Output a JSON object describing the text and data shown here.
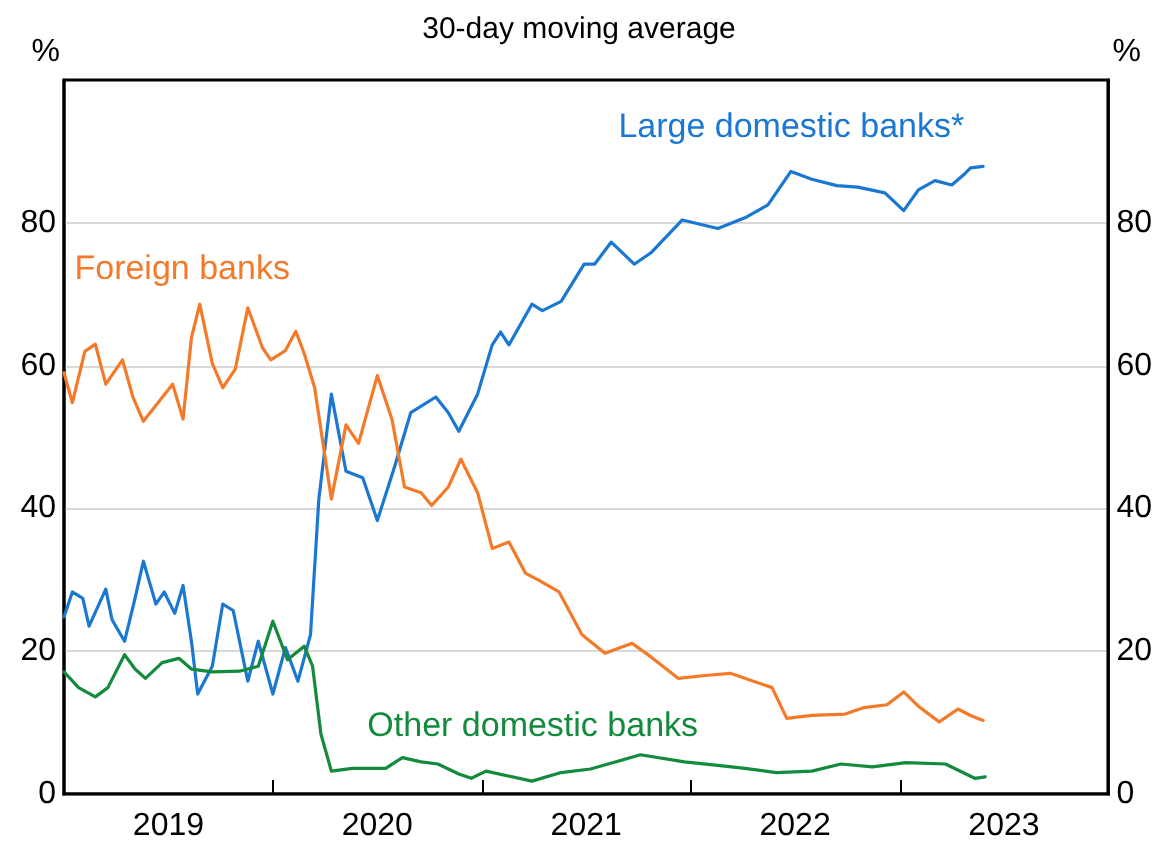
{
  "chart_data": {
    "type": "line",
    "title": "30-day moving average",
    "ylabel": "%",
    "y2label": "%",
    "xlim": [
      2019,
      2024
    ],
    "xticks": [
      {
        "value": 2019.5,
        "label": "2019"
      },
      {
        "value": 2020,
        "label": null
      },
      {
        "value": 2020.5,
        "label": "2020"
      },
      {
        "value": 2021,
        "label": null
      },
      {
        "value": 2021.5,
        "label": "2021"
      },
      {
        "value": 2022,
        "label": null
      },
      {
        "value": 2022.5,
        "label": "2022"
      },
      {
        "value": 2023,
        "label": null
      },
      {
        "value": 2023.5,
        "label": "2023"
      }
    ],
    "ylim": [
      0,
      100
    ],
    "yticks": [
      0,
      20,
      40,
      60,
      80
    ],
    "y2lim": [
      0,
      100
    ],
    "y2ticks": [
      0,
      20,
      40,
      60,
      80
    ],
    "grid": "y",
    "legend": false,
    "marker": "none",
    "line_style": "solid",
    "series": [
      {
        "name": "Large domestic banks*",
        "color": "#1a78d2",
        "x": [
          2019.0,
          2019.04,
          2019.09,
          2019.12,
          2019.2,
          2019.23,
          2019.29,
          2019.34,
          2019.38,
          2019.44,
          2019.48,
          2019.53,
          2019.57,
          2019.61,
          2019.64,
          2019.71,
          2019.76,
          2019.81,
          2019.88,
          2019.93,
          2020.0,
          2020.06,
          2020.12,
          2020.18,
          2020.22,
          2020.28,
          2020.35,
          2020.43,
          2020.5,
          2020.58,
          2020.66,
          2020.78,
          2020.84,
          2020.89,
          2020.98,
          2021.05,
          2021.09,
          2021.13,
          2021.24,
          2021.29,
          2021.38,
          2021.49,
          2021.54,
          2021.62,
          2021.73,
          2021.81,
          2021.96,
          2022.13,
          2022.26,
          2022.37,
          2022.48,
          2022.58,
          2022.7,
          2022.8,
          2022.93,
          2023.02,
          2023.09,
          2023.17,
          2023.25,
          2023.31,
          2023.34,
          2023.4
        ],
        "values": [
          24.8,
          28.3,
          27.4,
          23.5,
          28.7,
          24.4,
          21.4,
          27.4,
          32.6,
          26.6,
          28.3,
          25.3,
          29.2,
          21.4,
          14,
          17.9,
          26.6,
          25.7,
          15.8,
          21.4,
          14,
          20.5,
          15.8,
          22.3,
          41.3,
          56,
          45.2,
          44.3,
          38.3,
          45.6,
          53.4,
          55.6,
          53.4,
          50.8,
          56,
          62.9,
          64.7,
          62.9,
          68.6,
          67.7,
          69,
          74.2,
          74.2,
          77.3,
          74.2,
          75.8,
          80.4,
          79.2,
          80.7,
          82.5,
          87.2,
          86.1,
          85.2,
          85,
          84.2,
          81.7,
          84.6,
          85.9,
          85.3,
          86.8,
          87.7,
          87.9
        ]
      },
      {
        "name": "Foreign banks",
        "color": "#f47a2a",
        "x": [
          2019.0,
          2019.04,
          2019.1,
          2019.15,
          2019.2,
          2019.28,
          2019.33,
          2019.38,
          2019.45,
          2019.52,
          2019.57,
          2019.61,
          2019.65,
          2019.71,
          2019.76,
          2019.82,
          2019.88,
          2019.95,
          2019.99,
          2020.06,
          2020.11,
          2020.15,
          2020.2,
          2020.24,
          2020.28,
          2020.35,
          2020.41,
          2020.5,
          2020.57,
          2020.63,
          2020.71,
          2020.76,
          2020.84,
          2020.9,
          2020.98,
          2021.05,
          2021.13,
          2021.21,
          2021.27,
          2021.37,
          2021.48,
          2021.59,
          2021.72,
          2021.81,
          2021.94,
          2022.07,
          2022.19,
          2022.35,
          2022.39,
          2022.46,
          2022.58,
          2022.74,
          2022.83,
          2022.94,
          2023.02,
          2023.09,
          2023.19,
          2023.28,
          2023.34,
          2023.4
        ],
        "values": [
          59,
          54.8,
          62,
          63,
          57.4,
          60.8,
          55.6,
          52.2,
          54.8,
          57.4,
          52.5,
          63.9,
          68.6,
          60.3,
          56.9,
          59.5,
          68.1,
          62.5,
          60.8,
          62.1,
          64.8,
          61.7,
          56.9,
          49.1,
          41.3,
          51.7,
          49.1,
          58.6,
          52.5,
          43,
          42.2,
          40.4,
          43,
          46.9,
          42.2,
          34.4,
          35.3,
          30.9,
          30,
          28.3,
          22.3,
          19.7,
          21.1,
          19.2,
          16.2,
          16.6,
          16.9,
          15.3,
          14.9,
          10.6,
          11,
          11.2,
          12.1,
          12.5,
          14.3,
          12.3,
          10.1,
          11.9,
          11,
          10.3
        ]
      },
      {
        "name": "Other domestic banks",
        "color": "#138a3c",
        "x": [
          2019.0,
          2019.07,
          2019.15,
          2019.21,
          2019.29,
          2019.34,
          2019.39,
          2019.47,
          2019.55,
          2019.61,
          2019.71,
          2019.84,
          2019.93,
          2020.0,
          2020.07,
          2020.15,
          2020.19,
          2020.23,
          2020.28,
          2020.38,
          2020.54,
          2020.62,
          2020.71,
          2020.79,
          2020.89,
          2020.95,
          2021.02,
          2021.24,
          2021.38,
          2021.52,
          2021.63,
          2021.76,
          2021.97,
          2022.13,
          2022.26,
          2022.41,
          2022.58,
          2022.72,
          2022.87,
          2023.03,
          2023.22,
          2023.36,
          2023.41
        ],
        "values": [
          17.1,
          14.9,
          13.6,
          14.9,
          19.5,
          17.5,
          16.2,
          18.4,
          19,
          17.5,
          17.1,
          17.2,
          17.9,
          24.2,
          18.8,
          20.7,
          17.9,
          8.4,
          3.2,
          3.6,
          3.6,
          5.1,
          4.5,
          4.2,
          2.8,
          2.2,
          3.2,
          1.8,
          3,
          3.5,
          4.4,
          5.5,
          4.5,
          4,
          3.6,
          3,
          3.2,
          4.2,
          3.8,
          4.4,
          4.2,
          2.2,
          2.4
        ]
      }
    ]
  }
}
